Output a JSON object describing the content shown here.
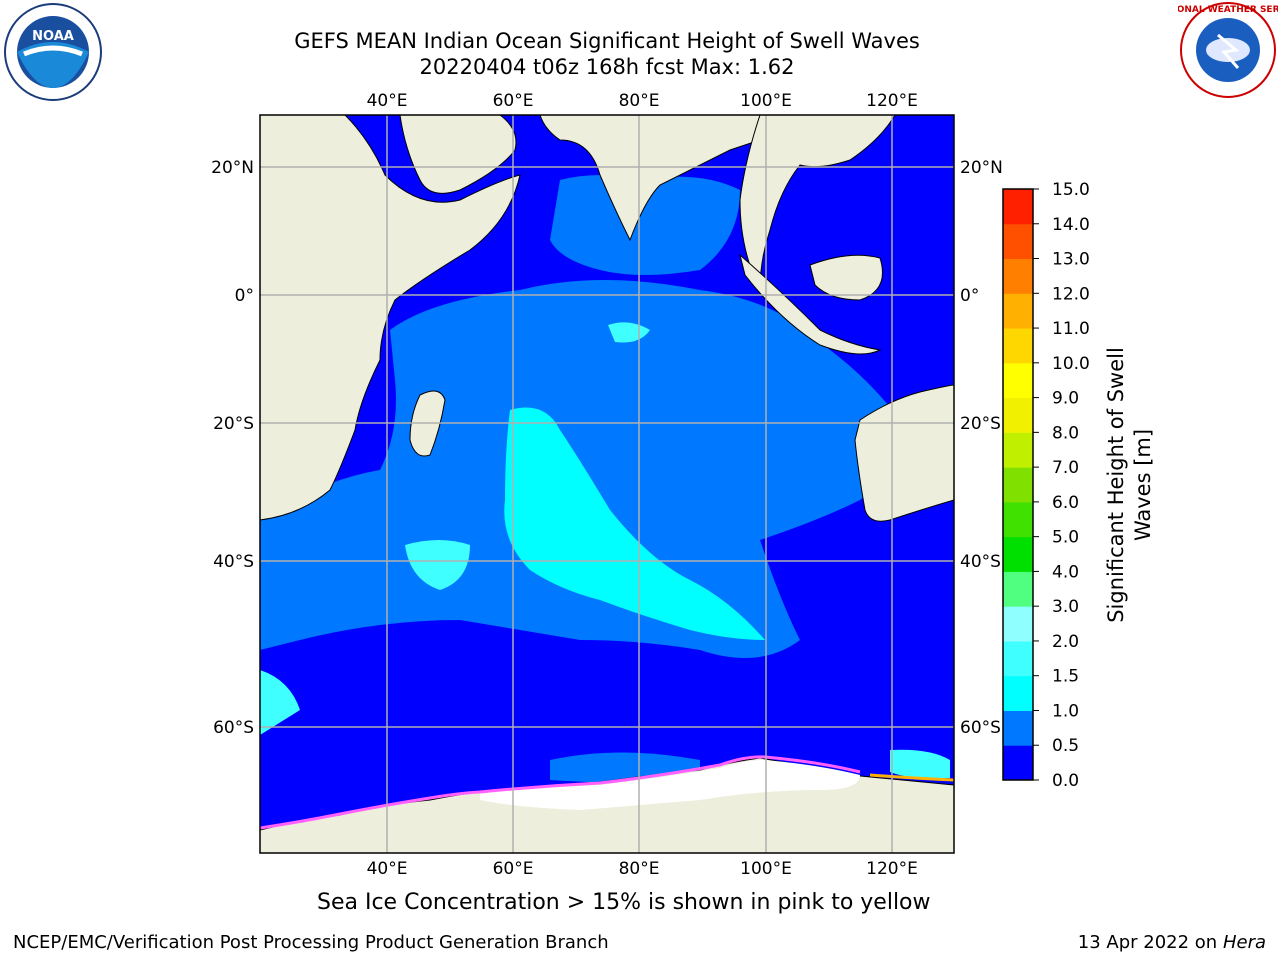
{
  "header": {
    "title_line1": "GEFS MEAN Indian Ocean Significant Height of Swell Waves",
    "title_line2": "20220404 t06z 168h fcst   Max: 1.62"
  },
  "logos": {
    "left": {
      "name": "NOAA",
      "text": "NOAA"
    },
    "right": {
      "name": "National Weather Service",
      "text": "NATIONAL WEATHER SERVICE"
    }
  },
  "map": {
    "lon_labels": [
      "40°E",
      "60°E",
      "80°E",
      "100°E",
      "120°E"
    ],
    "lat_labels": [
      "20°N",
      "0°",
      "20°S",
      "40°S",
      "60°S"
    ],
    "colors": {
      "land": "#eeeedd",
      "ice": "#ffffff",
      "grid": "#b0b0b0"
    }
  },
  "colorbar": {
    "label_line1": "Significant Height of Swell",
    "label_line2": "Waves [m]",
    "ticks": [
      "0.0",
      "0.5",
      "1.0",
      "1.5",
      "2.0",
      "3.0",
      "4.0",
      "5.0",
      "6.0",
      "7.0",
      "8.0",
      "9.0",
      "10.0",
      "11.0",
      "12.0",
      "13.0",
      "14.0",
      "15.0"
    ],
    "colors": [
      "#0000ff",
      "#0078ff",
      "#00ffff",
      "#40ffff",
      "#90ffff",
      "#50ff80",
      "#00e000",
      "#40e000",
      "#80e000",
      "#c0f000",
      "#f0f000",
      "#ffff00",
      "#ffd700",
      "#ffb000",
      "#ff8000",
      "#ff5000",
      "#ff2000"
    ]
  },
  "caption": "Sea Ice Concentration > 15% is shown in pink to yellow",
  "footer": {
    "left": "NCEP/EMC/Verification Post Processing Product Generation Branch",
    "right_prefix": "13 Apr 2022 on ",
    "right_host": "Hera"
  }
}
